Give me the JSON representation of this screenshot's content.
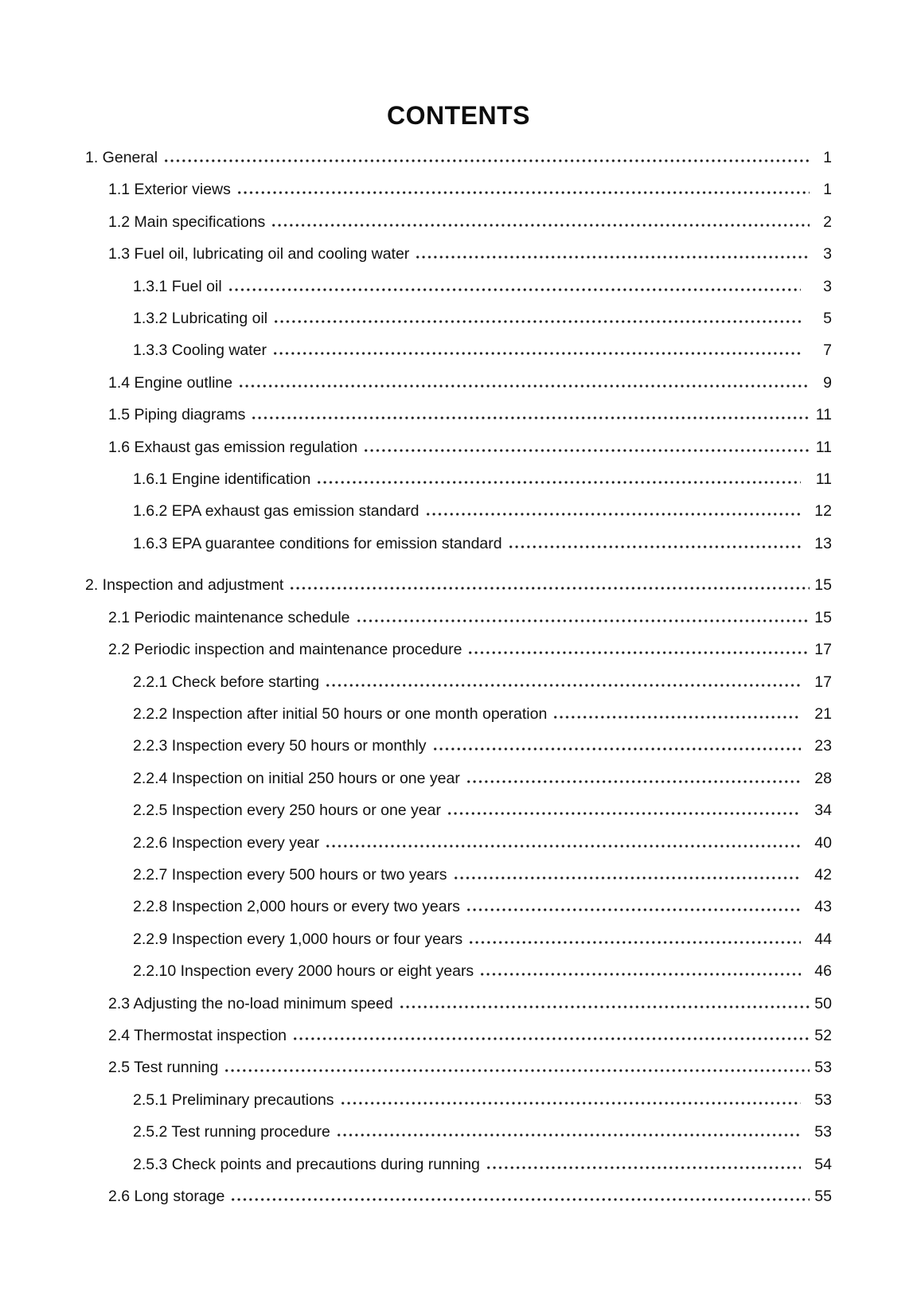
{
  "page": {
    "title": "CONTENTS"
  },
  "toc": {
    "entries": [
      {
        "label": "1. General",
        "page": "1",
        "level": 0
      },
      {
        "label": "1.1 Exterior views",
        "page": "1",
        "level": 1
      },
      {
        "label": "1.2 Main specifications",
        "page": "2",
        "level": 1
      },
      {
        "label": "1.3 Fuel oil, lubricating oil and cooling water",
        "page": "3",
        "level": 1
      },
      {
        "label": "1.3.1 Fuel oil",
        "page": "3",
        "level": 2
      },
      {
        "label": "1.3.2 Lubricating oil",
        "page": "5",
        "level": 2
      },
      {
        "label": "1.3.3 Cooling water",
        "page": "7",
        "level": 2
      },
      {
        "label": "1.4 Engine outline",
        "page": "9",
        "level": 1
      },
      {
        "label": "1.5 Piping diagrams",
        "page": "11",
        "level": 1
      },
      {
        "label": "1.6 Exhaust gas emission regulation",
        "page": "11",
        "level": 1
      },
      {
        "label": "1.6.1 Engine identification",
        "page": "11",
        "level": 2
      },
      {
        "label": "1.6.2 EPA exhaust gas emission standard",
        "page": "12",
        "level": 2
      },
      {
        "label": "1.6.3 EPA guarantee conditions for emission standard",
        "page": "13",
        "level": 2
      },
      {
        "label": "2. Inspection and adjustment",
        "page": "15",
        "level": 0
      },
      {
        "label": "2.1 Periodic maintenance schedule",
        "page": "15",
        "level": 1
      },
      {
        "label": "2.2 Periodic inspection and maintenance procedure",
        "page": "17",
        "level": 1
      },
      {
        "label": "2.2.1 Check before starting",
        "page": "17",
        "level": 2
      },
      {
        "label": "2.2.2 Inspection after initial 50 hours or one month operation",
        "page": "21",
        "level": 2
      },
      {
        "label": "2.2.3 Inspection every 50 hours or monthly",
        "page": "23",
        "level": 2
      },
      {
        "label": "2.2.4 Inspection on initial 250 hours or one year",
        "page": "28",
        "level": 2
      },
      {
        "label": "2.2.5 Inspection every 250 hours or one year",
        "page": "34",
        "level": 2
      },
      {
        "label": "2.2.6 Inspection every year",
        "page": "40",
        "level": 2
      },
      {
        "label": "2.2.7 Inspection every 500 hours or two years",
        "page": "42",
        "level": 2
      },
      {
        "label": "2.2.8 Inspection 2,000 hours or every two years",
        "page": "43",
        "level": 2
      },
      {
        "label": "2.2.9 Inspection every 1,000 hours or four years",
        "page": "44",
        "level": 2
      },
      {
        "label": "2.2.10 Inspection every 2000 hours or eight years",
        "page": "46",
        "level": 2
      },
      {
        "label": "2.3 Adjusting the no-load minimum speed",
        "page": "50",
        "level": 1
      },
      {
        "label": "2.4 Thermostat inspection",
        "page": "52",
        "level": 1
      },
      {
        "label": "2.5 Test running",
        "page": "53",
        "level": 1
      },
      {
        "label": "2.5.1 Preliminary precautions",
        "page": "53",
        "level": 2
      },
      {
        "label": "2.5.2 Test running procedure",
        "page": "53",
        "level": 2
      },
      {
        "label": "2.5.3 Check points and precautions during running",
        "page": "54",
        "level": 2
      },
      {
        "label": "2.6 Long storage",
        "page": "55",
        "level": 1
      }
    ]
  }
}
